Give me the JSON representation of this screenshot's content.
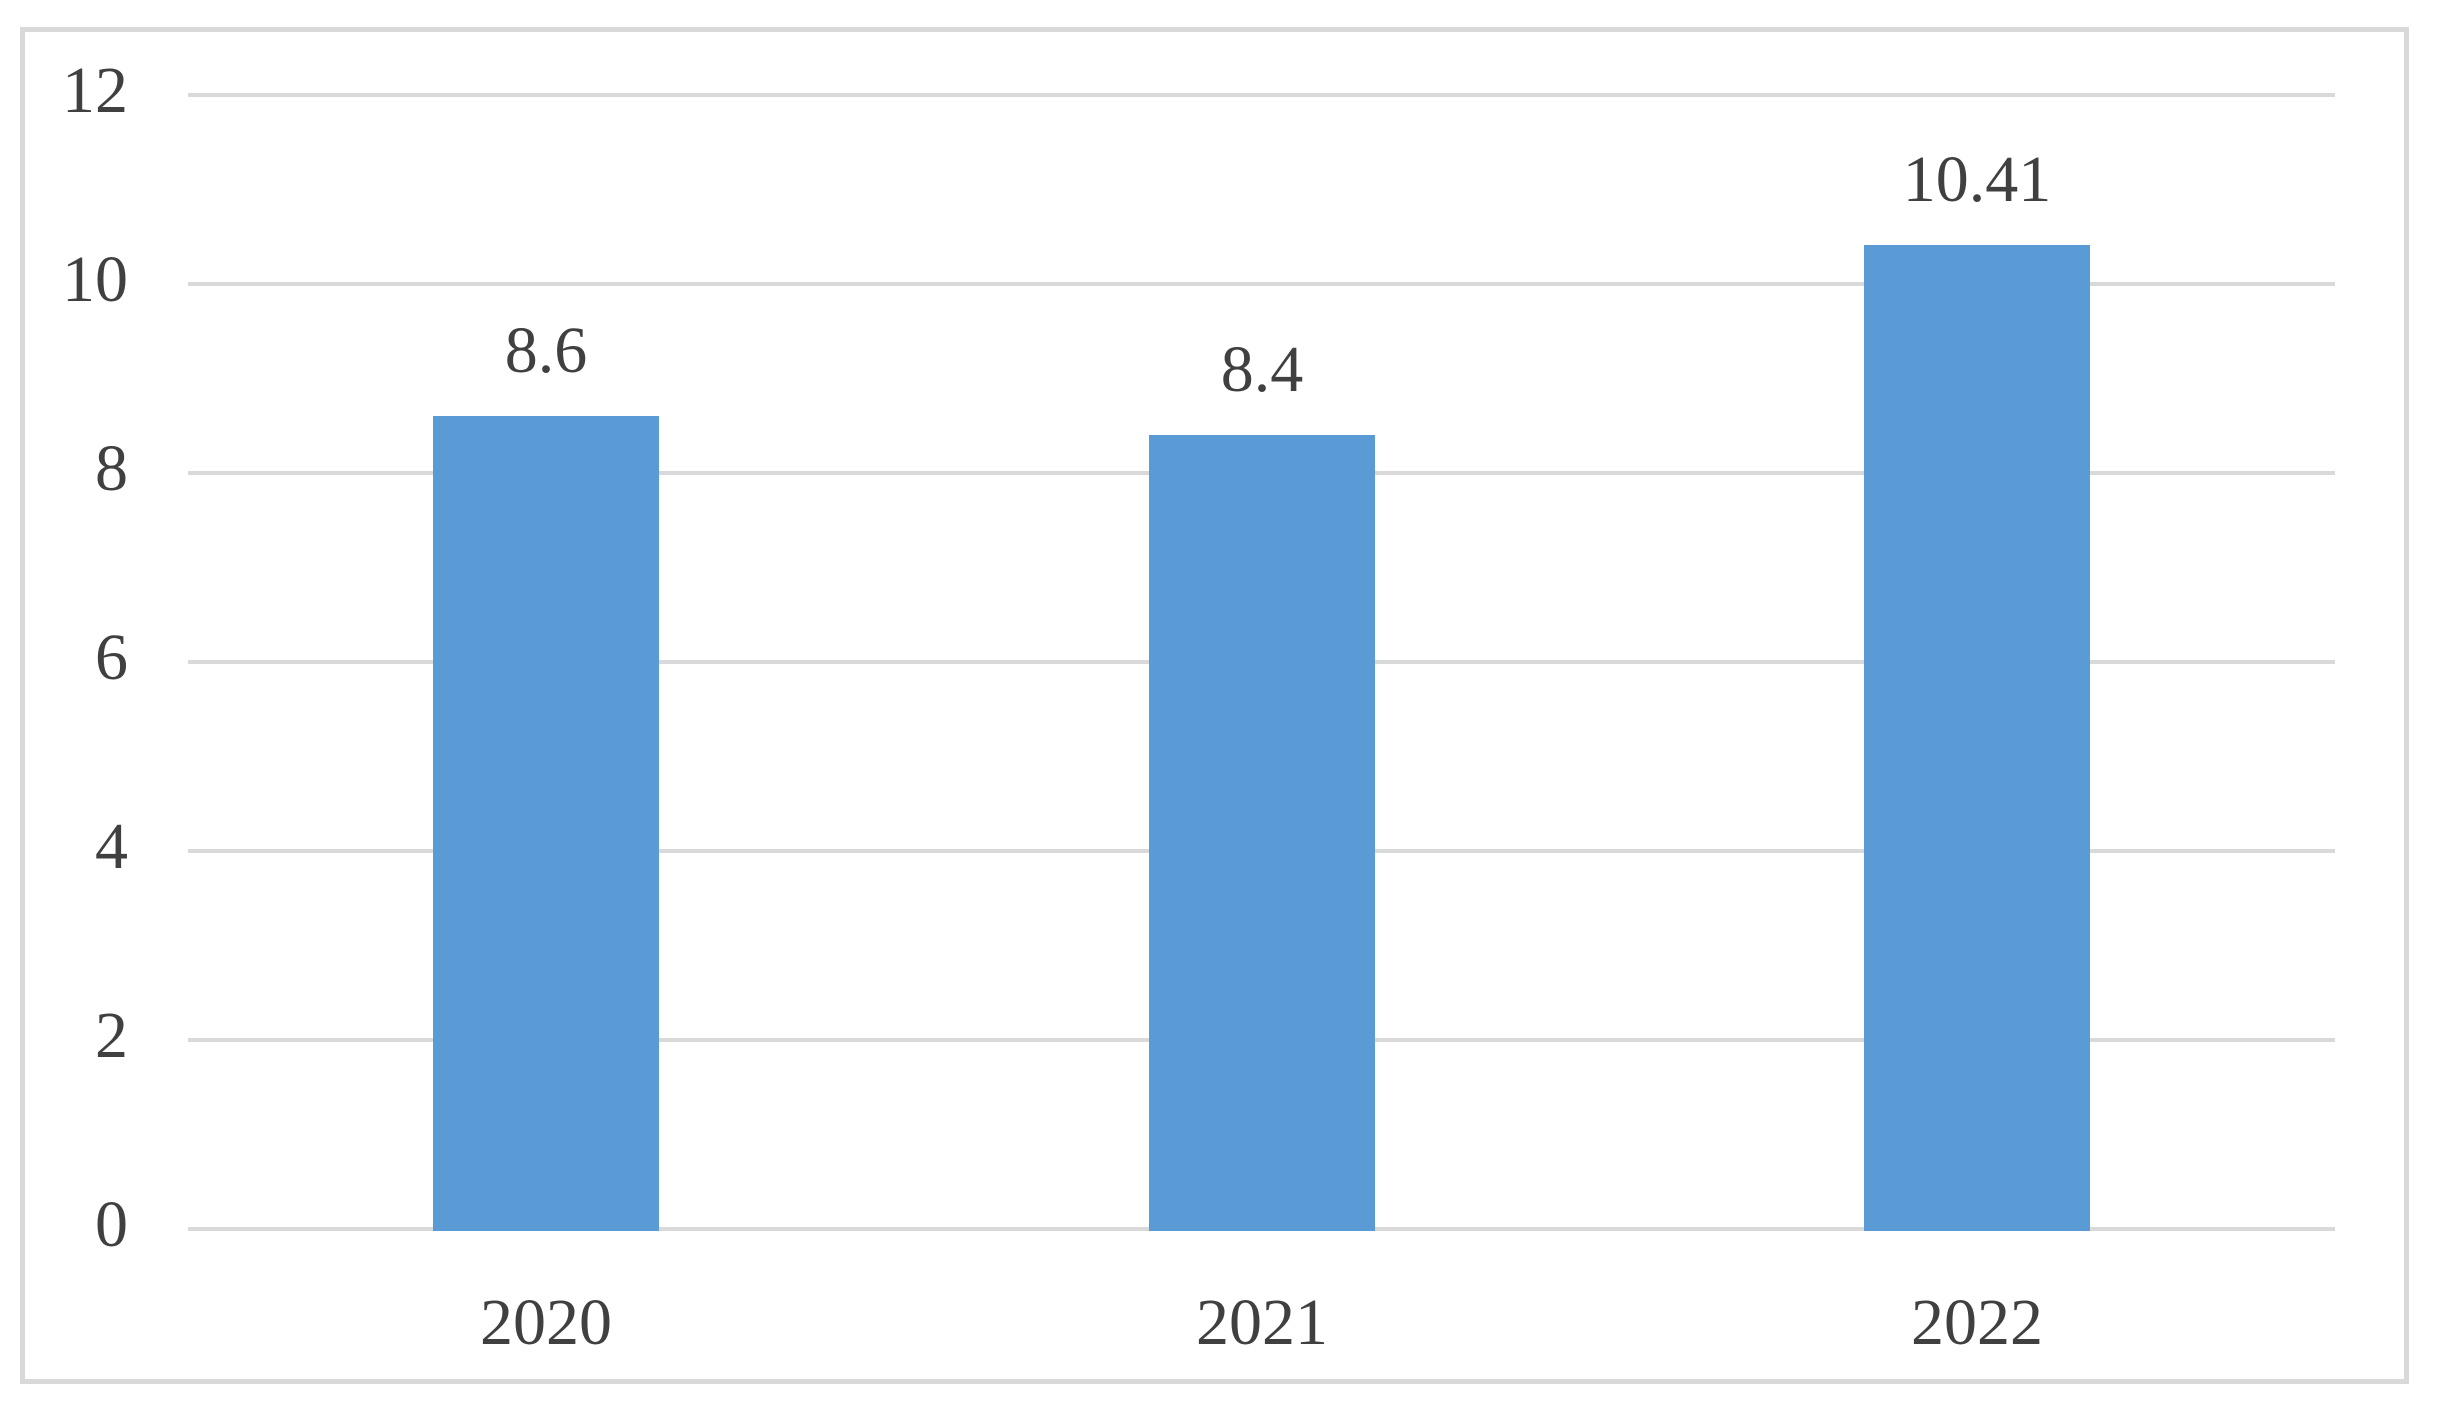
{
  "chart_data": {
    "type": "bar",
    "categories": [
      "2020",
      "2021",
      "2022"
    ],
    "values": [
      8.6,
      8.4,
      10.41
    ],
    "data_labels": [
      "8.6",
      "8.4",
      "10.41"
    ],
    "ylim": [
      0,
      12
    ],
    "yticks": [
      0,
      2,
      4,
      6,
      8,
      10,
      12
    ],
    "ytick_labels": [
      "0",
      "2",
      "4",
      "6",
      "8",
      "10",
      "12"
    ],
    "grid": true,
    "legend": false,
    "series_count": 1,
    "colors": {
      "bar": "#5b9bd5",
      "gridline": "#d9d9d9",
      "frame_border": "#d9d9d9",
      "text": "#404040",
      "background": "#ffffff"
    }
  }
}
